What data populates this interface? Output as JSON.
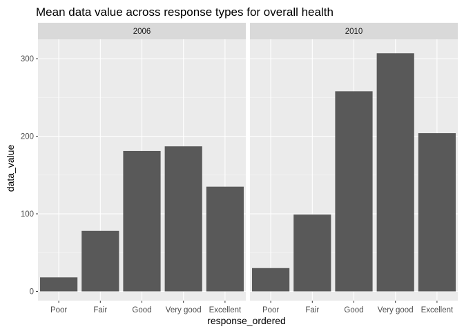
{
  "chart_data": {
    "type": "bar",
    "title": "Mean data value across response types for overall health",
    "xlabel": "response_ordered",
    "ylabel": "data_value",
    "categories": [
      "Poor",
      "Fair",
      "Good",
      "Very good",
      "Excellent"
    ],
    "ylim": [
      -12,
      325
    ],
    "yticks": [
      0,
      100,
      200,
      300
    ],
    "grid": true,
    "legend": "none",
    "colors": {
      "bar": "#595959",
      "panel": "#ebebeb",
      "strip": "#d9d9d9",
      "grid_major": "#ffffff",
      "grid_minor": "#f5f5f5"
    },
    "panels": [
      {
        "label": "2006",
        "values": [
          18,
          78,
          181,
          187,
          135
        ]
      },
      {
        "label": "2010",
        "values": [
          30,
          99,
          258,
          307,
          204
        ]
      }
    ]
  }
}
